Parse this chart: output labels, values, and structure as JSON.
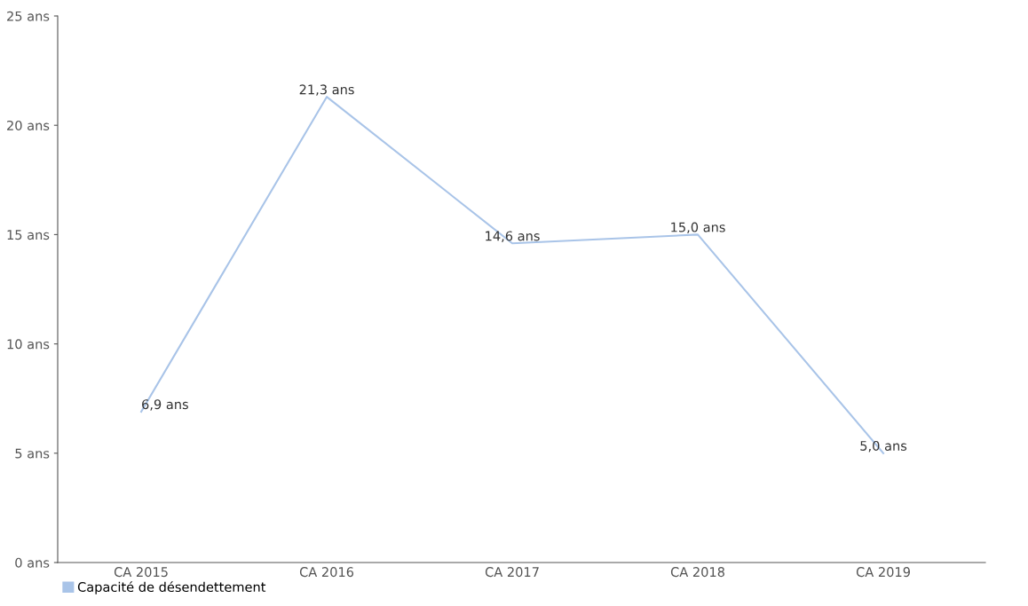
{
  "chart_data": {
    "type": "line",
    "categories": [
      "CA 2015",
      "CA 2016",
      "CA 2017",
      "CA 2018",
      "CA 2019"
    ],
    "series": [
      {
        "name": "Capacité de désendettement",
        "color": "#a9c4e8",
        "values": [
          6.9,
          21.3,
          14.6,
          15.0,
          5.0
        ],
        "value_labels": [
          "6,9 ans",
          "21,3 ans",
          "14,6 ans",
          "15,0 ans",
          "5,0 ans"
        ]
      }
    ],
    "ylim": [
      0,
      25
    ],
    "yticks": [
      {
        "value": 0,
        "label": "0 ans"
      },
      {
        "value": 5,
        "label": "5 ans"
      },
      {
        "value": 10,
        "label": "10 ans"
      },
      {
        "value": 15,
        "label": "15 ans"
      },
      {
        "value": 20,
        "label": "20 ans"
      },
      {
        "value": 25,
        "label": "25 ans"
      }
    ],
    "grid": false,
    "legend": "bottom left",
    "marker": "none",
    "line_style": "solid"
  }
}
